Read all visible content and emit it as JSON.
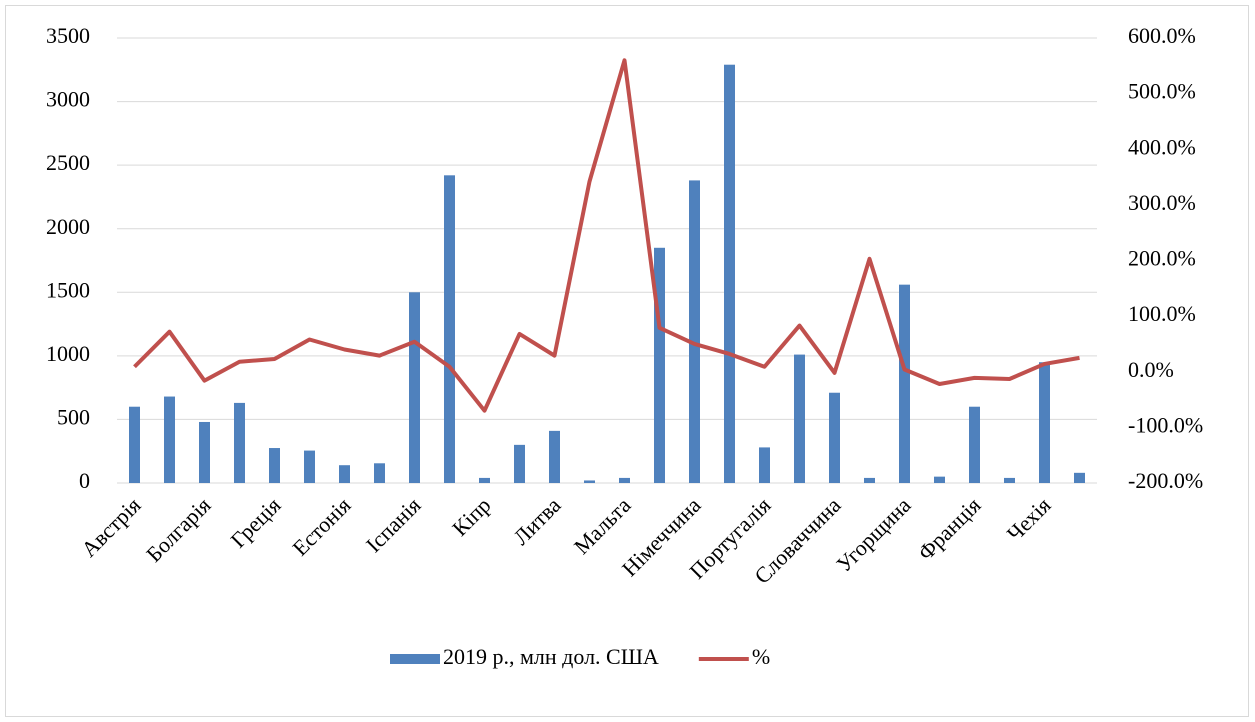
{
  "chart_data": {
    "type": "bar-line",
    "categories": [
      "Австрія",
      null,
      "Болгарія",
      null,
      "Греція",
      null,
      "Естонія",
      null,
      "Іспанія",
      null,
      "Кіпр",
      null,
      "Литва",
      null,
      "Мальта",
      null,
      "Німеччина",
      null,
      "Португалія",
      null,
      "Словаччина",
      null,
      "Угорщина",
      null,
      "Франція",
      null,
      "Чехія",
      null
    ],
    "series": [
      {
        "name": "2019 р., млн дол. США",
        "type": "bar",
        "color": "#4f81bd",
        "values": [
          600,
          680,
          480,
          630,
          275,
          255,
          140,
          155,
          1500,
          2420,
          40,
          300,
          410,
          20,
          40,
          1850,
          2380,
          3290,
          280,
          1010,
          710,
          40,
          1560,
          50,
          600,
          40,
          950,
          80
        ]
      },
      {
        "name": "%",
        "type": "line",
        "axis": "y2",
        "color": "#c0504d",
        "values": [
          9,
          72,
          -16,
          18,
          23,
          58,
          40,
          29,
          54,
          9,
          -70,
          68,
          29,
          342,
          560,
          79,
          50,
          32,
          9,
          83,
          -2,
          203,
          4,
          -22,
          -11,
          -13,
          14,
          25
        ]
      }
    ],
    "ylim": [
      0,
      3500
    ],
    "yticks": [
      0,
      500,
      1000,
      1500,
      2000,
      2500,
      3000,
      3500
    ],
    "y2lim": [
      -200,
      600
    ],
    "y2ticks": [
      {
        "value": -200,
        "label": "-200.0%"
      },
      {
        "value": -100,
        "label": "-100.0%"
      },
      {
        "value": 0,
        "label": "0.0%"
      },
      {
        "value": 100,
        "label": "100.0%"
      },
      {
        "value": 200,
        "label": "200.0%"
      },
      {
        "value": 300,
        "label": "300.0%"
      },
      {
        "value": 400,
        "label": "400.0%"
      },
      {
        "value": 500,
        "label": "500.0%"
      },
      {
        "value": 600,
        "label": "600.0%"
      }
    ],
    "grid": true,
    "legend": "bottom"
  }
}
